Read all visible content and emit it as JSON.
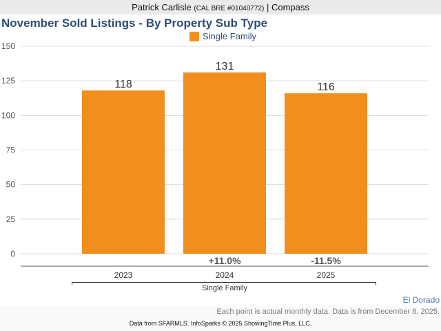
{
  "header": {
    "name": "Patrick Carlisle",
    "license": "(CAL BRE #01040772)",
    "separator": "|",
    "company": "Compass"
  },
  "chart_data": {
    "type": "bar",
    "title": "November Sold Listings - By Property Sub Type",
    "legend": [
      "Single Family"
    ],
    "legend_position": "top-center",
    "categories": [
      "2023",
      "2024",
      "2025"
    ],
    "group_label": "Single Family",
    "series": [
      {
        "name": "Single Family",
        "values": [
          118,
          131,
          116
        ],
        "color": "#f28e1e"
      }
    ],
    "changes": [
      "",
      "+11.0%",
      "-11.5%"
    ],
    "yticks": [
      0,
      25,
      50,
      75,
      100,
      125,
      150
    ],
    "ylim": [
      0,
      150
    ],
    "grid": true
  },
  "region": "El Dorado",
  "note": "Each point is actual monthly data. Data is from December 8, 2025.",
  "source": "Data from SFARMLS. InfoSparks © 2025 ShowingTime Plus, LLC."
}
